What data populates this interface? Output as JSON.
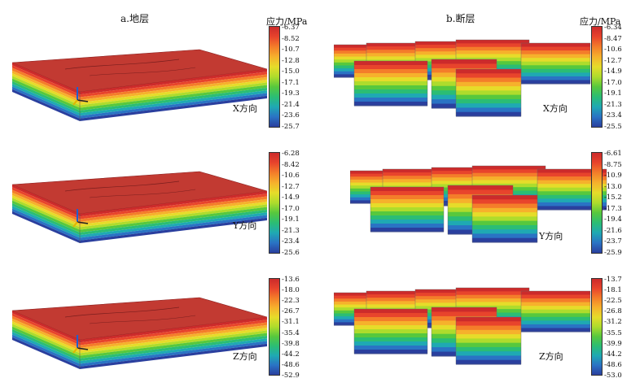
{
  "titles": {
    "strata": "a.地层",
    "faults": "b.断层"
  },
  "unit_label": "应力/MPa",
  "panels": [
    {
      "col": "strata",
      "direction": "X方向",
      "ticks": [
        "-6.37",
        "-8.52",
        "-10.7",
        "-12.8",
        "-15.0",
        "-17.1",
        "-19.3",
        "-21.4",
        "-23.6",
        "-25.7"
      ]
    },
    {
      "col": "faults",
      "direction": "X方向",
      "ticks": [
        "-6.34",
        "-8.47",
        "-10.6",
        "-12.7",
        "-14.9",
        "-17.0",
        "-19.1",
        "-21.3",
        "-23.4",
        "-25.5"
      ]
    },
    {
      "col": "strata",
      "direction": "Y方向",
      "ticks": [
        "-6.28",
        "-8.42",
        "-10.6",
        "-12.7",
        "-14.9",
        "-17.0",
        "-19.1",
        "-21.3",
        "-23.4",
        "-25.6"
      ]
    },
    {
      "col": "faults",
      "direction": "Y方向",
      "ticks": [
        "-6.61",
        "-8.75",
        "-10.9",
        "-13.0",
        "-15.2",
        "-17.3",
        "-19.4",
        "-21.6",
        "-23.7",
        "-25.9"
      ]
    },
    {
      "col": "strata",
      "direction": "Z方向",
      "ticks": [
        "-13.6",
        "-18.0",
        "-22.3",
        "-26.7",
        "-31.1",
        "-35.4",
        "-39.8",
        "-44.2",
        "-48.6",
        "-52.9"
      ]
    },
    {
      "col": "faults",
      "direction": "Z方向",
      "ticks": [
        "-13.7",
        "-18.1",
        "-22.5",
        "-26.8",
        "-31.2",
        "-35.5",
        "-39.9",
        "-44.2",
        "-48.6",
        "-53.0"
      ]
    }
  ],
  "colormap": [
    "#cc2b2b",
    "#e8442c",
    "#f47d2a",
    "#f6b12c",
    "#e6dc2a",
    "#aedc2c",
    "#57c83d",
    "#2bbd74",
    "#1fa9b3",
    "#2a73c4",
    "#2a3f9e"
  ]
}
